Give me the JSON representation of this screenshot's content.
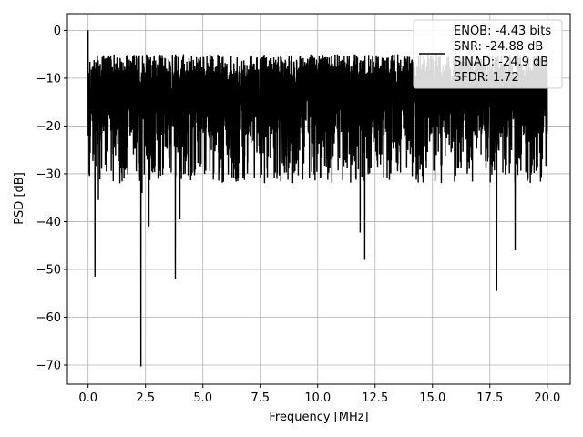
{
  "chart_data": {
    "type": "line",
    "title": "",
    "xlabel": "Frequency [MHz]",
    "ylabel": "PSD [dB]",
    "xlim": [
      -0.9,
      21.0
    ],
    "ylim": [
      -74,
      3.5
    ],
    "x_ticks": [
      0.0,
      2.5,
      5.0,
      7.5,
      10.0,
      12.5,
      15.0,
      17.5,
      20.0
    ],
    "x_tick_labels": [
      "0.0",
      "2.5",
      "5.0",
      "7.5",
      "10.0",
      "12.5",
      "15.0",
      "17.5",
      "20.0"
    ],
    "y_ticks": [
      0,
      -10,
      -20,
      -30,
      -40,
      -50,
      -60,
      -70
    ],
    "y_tick_labels": [
      "0",
      "−10",
      "−20",
      "−30",
      "−40",
      "−50",
      "−60",
      "−70"
    ],
    "grid": true,
    "legend_position": "top-right",
    "series": [
      {
        "color": "#000000",
        "x_range": [
          0,
          20
        ],
        "typical_range": [
          -22,
          -5
        ],
        "x": [
          0.0,
          0.05,
          0.1,
          0.3,
          0.45,
          2.3,
          2.35,
          2.65,
          3.8,
          4.0,
          11.85,
          12.05,
          17.8,
          18.6,
          20.0
        ],
        "y": [
          0.0,
          -17,
          -22,
          -51.5,
          -35.5,
          -70.3,
          -34,
          -41,
          -52,
          -39.5,
          -42.3,
          -48,
          -54.5,
          -46,
          -21
        ]
      }
    ]
  },
  "legend": {
    "entries": [
      "ENOB: -4.43 bits",
      "SNR: -24.88 dB",
      "SINAD: -24.9 dB",
      "SFDR: 1.72"
    ]
  }
}
